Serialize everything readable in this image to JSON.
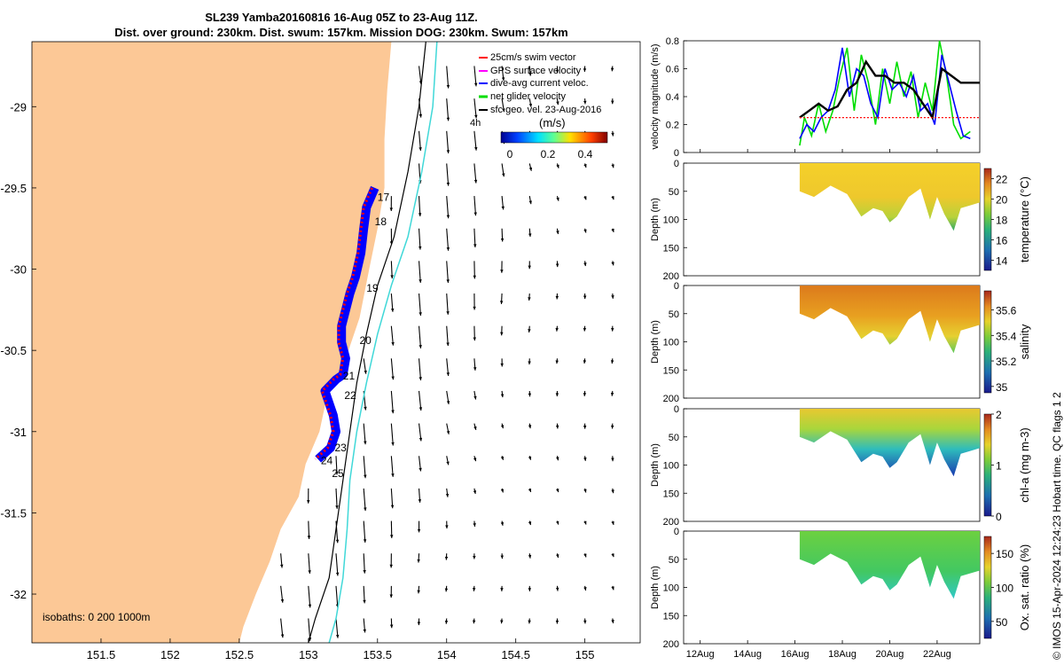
{
  "header": {
    "title_line1": "SL239 Yamba20160816 16-Aug 05Z to 23-Aug 11Z.",
    "title_line2": "Dist. over ground: 230km. Dist. swum: 157km. Mission DOG: 230km. Swum: 157km"
  },
  "credit": "© IMOS 15-Apr-2024 12:24:23 Hobart time. QC flags 1  2",
  "map": {
    "legend": [
      {
        "label": "25cm/s swim vector",
        "color": "#ff0000"
      },
      {
        "label": "GPS surface velocity",
        "color": "#ff00ff"
      },
      {
        "label": "dive-avg current veloc.",
        "color": "#0000ff"
      },
      {
        "label": "net glider velocity",
        "color": "#00dd00"
      },
      {
        "label": "sfc geo. vel. 23-Aug-2016",
        "color": "#000000"
      }
    ],
    "time_marker": "4h",
    "colorbar_unit": "(m/s)",
    "colorbar_ticks": [
      "0",
      "0.2",
      "0.4"
    ],
    "isobath_label": "isobaths: 0   200  1000m",
    "colors": {
      "land": "#fcc896",
      "track": "#0000ff",
      "swim": "#ff0000",
      "iso200": "#000000",
      "iso1000": "#40d8d8"
    }
  },
  "chart_data": [
    {
      "type": "map",
      "x_ticks": [
        "151.5",
        "152",
        "152.5",
        "153",
        "153.5",
        "154",
        "154.5",
        "155"
      ],
      "y_ticks": [
        "-29",
        "-29.5",
        "-30",
        "-30.5",
        "-31",
        "-31.5",
        "-32"
      ],
      "xlim": [
        151.0,
        155.4
      ],
      "ylim": [
        -32.3,
        -28.6
      ],
      "track": {
        "lon": [
          153.48,
          153.42,
          153.4,
          153.38,
          153.34,
          153.3,
          153.27,
          153.24,
          153.24,
          153.27,
          153.25,
          153.2,
          153.12,
          153.18,
          153.2,
          153.16,
          153.07
        ],
        "lat": [
          -29.5,
          -29.62,
          -29.75,
          -29.9,
          -30.05,
          -30.15,
          -30.25,
          -30.35,
          -30.45,
          -30.55,
          -30.65,
          -30.68,
          -30.75,
          -30.9,
          -31.0,
          -31.1,
          -31.17
        ]
      },
      "day_labels": [
        {
          "label": "17",
          "lon": 153.5,
          "lat": -29.58
        },
        {
          "label": "18",
          "lon": 153.48,
          "lat": -29.73
        },
        {
          "label": "19",
          "lon": 153.42,
          "lat": -30.14
        },
        {
          "label": "20",
          "lon": 153.37,
          "lat": -30.46
        },
        {
          "label": "21",
          "lon": 153.25,
          "lat": -30.68
        },
        {
          "label": "22",
          "lon": 153.26,
          "lat": -30.8
        },
        {
          "label": "23",
          "lon": 153.19,
          "lat": -31.12
        },
        {
          "label": "24",
          "lon": 153.09,
          "lat": -31.2
        },
        {
          "label": "25",
          "lon": 153.17,
          "lat": -31.28
        }
      ],
      "coast": {
        "lon": [
          153.6,
          153.57,
          153.55,
          153.55,
          153.5,
          153.44,
          153.37,
          153.25,
          153.13,
          153.08,
          152.98,
          152.93,
          152.8,
          152.72,
          152.62,
          152.53,
          152.5
        ],
        "lat": [
          -28.6,
          -28.9,
          -29.2,
          -29.5,
          -29.75,
          -30.0,
          -30.3,
          -30.6,
          -30.8,
          -31.0,
          -31.2,
          -31.4,
          -31.6,
          -31.8,
          -32.0,
          -32.2,
          -32.3
        ]
      },
      "isobath_200": {
        "lon": [
          153.85,
          153.8,
          153.72,
          153.62,
          153.5,
          153.42,
          153.35,
          153.3,
          153.25,
          153.2,
          153.15,
          153.05,
          153.0
        ],
        "lat": [
          -28.6,
          -29.0,
          -29.4,
          -29.8,
          -30.1,
          -30.4,
          -30.7,
          -31.0,
          -31.3,
          -31.6,
          -31.9,
          -32.15,
          -32.3
        ]
      },
      "isobath_1000": {
        "lon": [
          153.93,
          153.9,
          153.82,
          153.72,
          153.6,
          153.5,
          153.42,
          153.35,
          153.3,
          153.28,
          153.25,
          153.2,
          153.15
        ],
        "lat": [
          -28.6,
          -29.0,
          -29.4,
          -29.8,
          -30.1,
          -30.4,
          -30.7,
          -31.0,
          -31.3,
          -31.6,
          -31.9,
          -32.15,
          -32.3
        ]
      }
    },
    {
      "type": "line",
      "ylabel": "velocity magnitude (m/s)",
      "ylim": [
        0,
        0.8
      ],
      "y_ticks": [
        "0",
        "0.2",
        "0.4",
        "0.6",
        "0.8"
      ],
      "x_ticks": [
        "12Aug",
        "14Aug",
        "16Aug",
        "18Aug",
        "20Aug",
        "22Aug"
      ],
      "series": [
        {
          "color": "#00dd00",
          "x": [
            16.2,
            16.4,
            16.7,
            17.0,
            17.3,
            17.6,
            17.9,
            18.2,
            18.5,
            18.8,
            19.1,
            19.4,
            19.7,
            20.0,
            20.3,
            20.6,
            20.9,
            21.2,
            21.5,
            21.8,
            22.1,
            22.4,
            22.7,
            23.0,
            23.4
          ],
          "y": [
            0.05,
            0.25,
            0.12,
            0.35,
            0.15,
            0.3,
            0.55,
            0.75,
            0.3,
            0.7,
            0.5,
            0.2,
            0.6,
            0.35,
            0.65,
            0.4,
            0.58,
            0.25,
            0.5,
            0.3,
            0.8,
            0.55,
            0.2,
            0.1,
            0.15
          ]
        },
        {
          "color": "#0000ff",
          "x": [
            16.2,
            16.5,
            16.8,
            17.1,
            17.4,
            17.7,
            18.0,
            18.3,
            18.6,
            18.9,
            19.2,
            19.5,
            19.8,
            20.1,
            20.4,
            20.7,
            21.0,
            21.3,
            21.6,
            21.9,
            22.2,
            22.5,
            22.8,
            23.1,
            23.4
          ],
          "y": [
            0.1,
            0.2,
            0.15,
            0.25,
            0.3,
            0.45,
            0.75,
            0.4,
            0.6,
            0.55,
            0.35,
            0.25,
            0.6,
            0.45,
            0.5,
            0.4,
            0.55,
            0.3,
            0.35,
            0.2,
            0.7,
            0.5,
            0.3,
            0.12,
            0.1
          ]
        },
        {
          "color": "#000000",
          "x": [
            16.2,
            16.6,
            17.0,
            17.4,
            17.8,
            18.2,
            18.6,
            19.0,
            19.4,
            19.8,
            20.2,
            20.6,
            21.0,
            21.4,
            21.8,
            22.2,
            22.6,
            23.0,
            23.4,
            23.8
          ],
          "y": [
            0.25,
            0.3,
            0.35,
            0.3,
            0.33,
            0.45,
            0.5,
            0.65,
            0.55,
            0.55,
            0.5,
            0.5,
            0.45,
            0.35,
            0.25,
            0.6,
            0.55,
            0.5,
            0.5,
            0.5
          ]
        },
        {
          "color": "#ff0000",
          "x": [
            16.2,
            23.8
          ],
          "y": [
            0.25,
            0.25
          ]
        }
      ]
    },
    {
      "type": "heatmap",
      "ylabel": "Depth (m)",
      "clabel": "temperature (°C)",
      "y_ticks": [
        "0",
        "50",
        "100",
        "150",
        "200"
      ],
      "c_ticks": [
        "22",
        "20",
        "18",
        "16",
        "14"
      ],
      "clim": [
        13,
        23
      ]
    },
    {
      "type": "heatmap",
      "ylabel": "Depth (m)",
      "clabel": "salinity",
      "y_ticks": [
        "0",
        "50",
        "100",
        "150",
        "200"
      ],
      "c_ticks": [
        "35.6",
        "35.4",
        "35.2",
        "35"
      ],
      "clim": [
        34.95,
        35.75
      ]
    },
    {
      "type": "heatmap",
      "ylabel": "Depth (m)",
      "clabel": "chl-a (mg m-3)",
      "y_ticks": [
        "0",
        "50",
        "100",
        "150",
        "200"
      ],
      "c_ticks": [
        "2",
        "1",
        "0"
      ],
      "clim": [
        0,
        2
      ]
    },
    {
      "type": "heatmap",
      "ylabel": "Depth (m)",
      "clabel": "Ox. sat. ratio (%)",
      "y_ticks": [
        "0",
        "50",
        "100",
        "150",
        "200"
      ],
      "c_ticks": [
        "150",
        "100",
        "50"
      ],
      "clim": [
        25,
        175
      ]
    }
  ]
}
